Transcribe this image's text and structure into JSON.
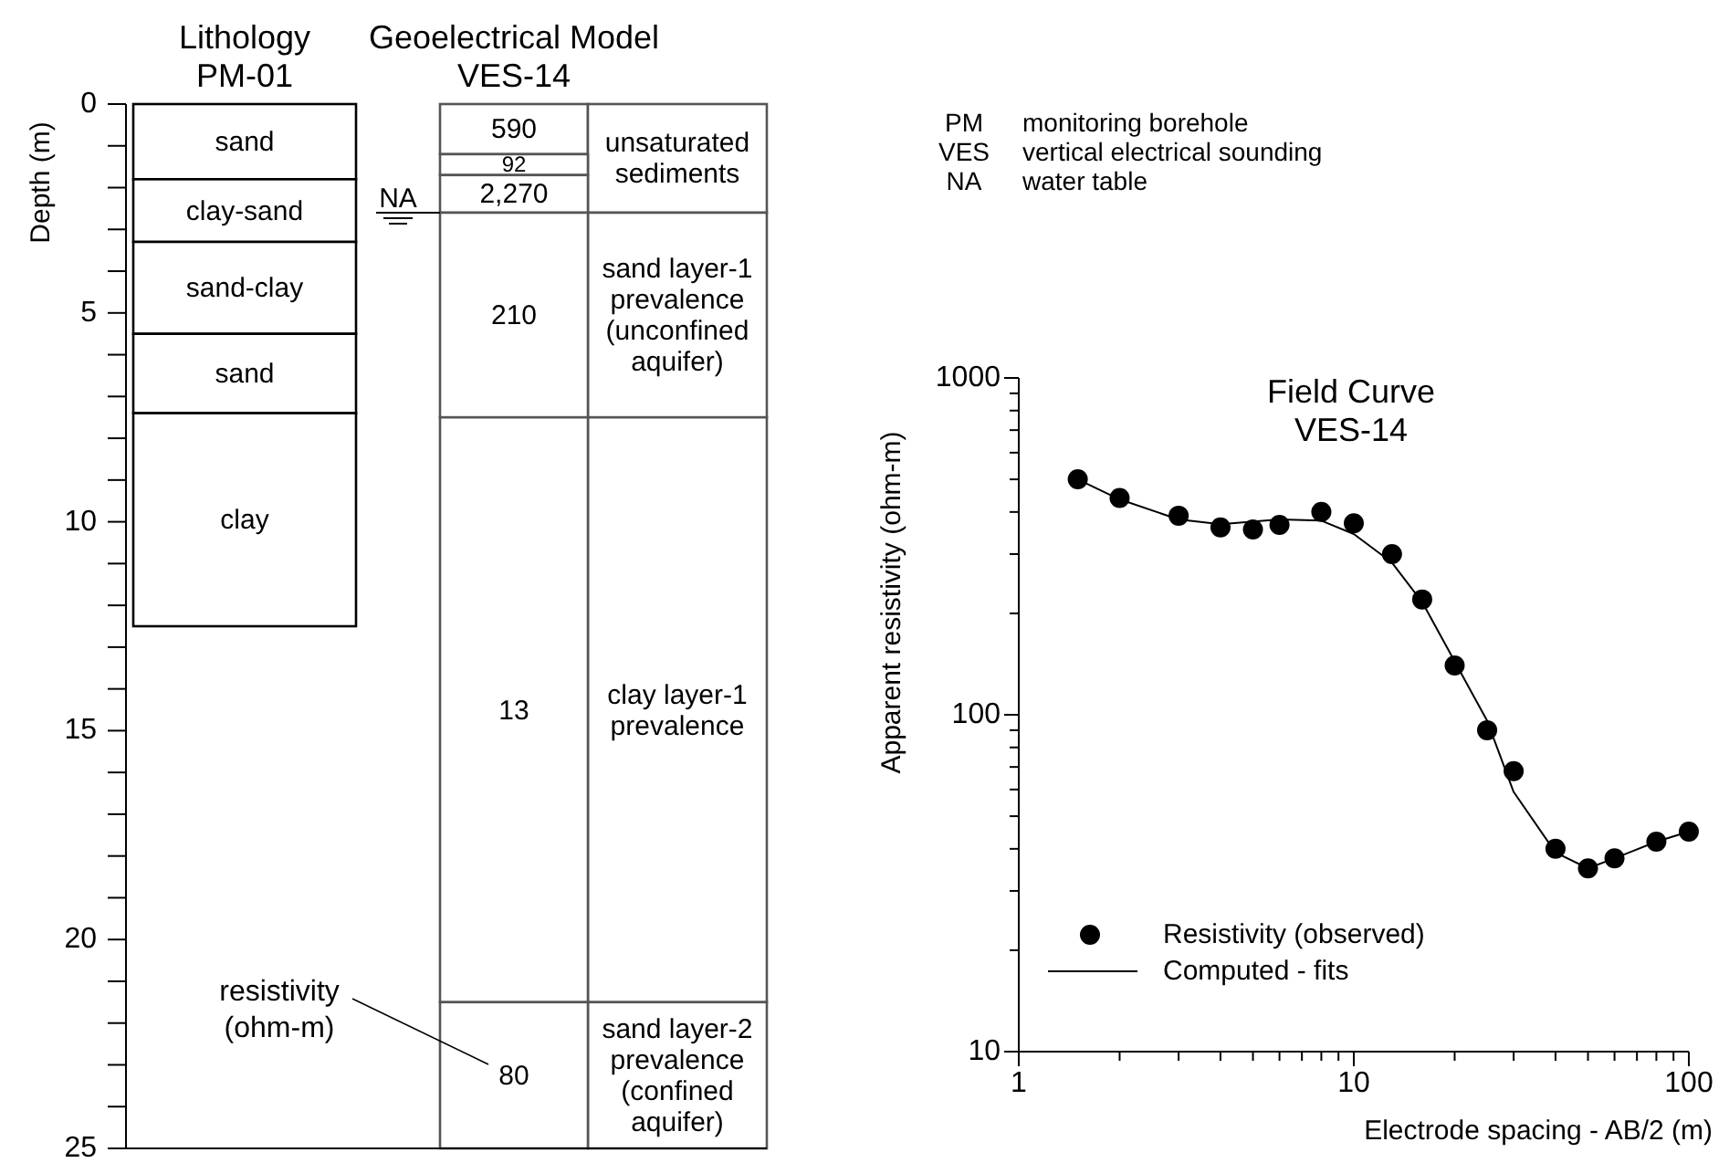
{
  "chart_data": [
    {
      "type": "bar",
      "stacked": true,
      "categories": [
        "Lithology\nPM-01",
        "Geoelectrical Model\nVES-14",
        null
      ],
      "ylabel": "Depth (m)",
      "ylim": [
        25,
        0
      ],
      "yticks": [
        0,
        {
          "value": 1,
          "label": null
        },
        {
          "value": 2,
          "label": null
        },
        {
          "value": 3,
          "label": null
        },
        {
          "value": 4,
          "label": null
        },
        5,
        {
          "value": 6,
          "label": null
        },
        {
          "value": 7,
          "label": null
        },
        {
          "value": 8,
          "label": null
        },
        {
          "value": 9,
          "label": null
        },
        10,
        {
          "value": 11,
          "label": null
        },
        {
          "value": 12,
          "label": null
        },
        {
          "value": 13,
          "label": null
        },
        {
          "value": 14,
          "label": null
        },
        15,
        {
          "value": 16,
          "label": null
        },
        {
          "value": 17,
          "label": null
        },
        {
          "value": 18,
          "label": null
        },
        {
          "value": 19,
          "label": null
        },
        20,
        {
          "value": 21,
          "label": null
        },
        {
          "value": 22,
          "label": null
        },
        {
          "value": 23,
          "label": null
        },
        {
          "value": 24,
          "label": null
        },
        25
      ],
      "series": [
        {
          "color": "#ffffff",
          "values": [
            1.8,
            1.2,
            2.6
          ],
          "value_labels": [
            "sand",
            null,
            "unsaturated\nsediments"
          ]
        },
        {
          "color": "#ffffff",
          "values": [
            1.5,
            0.5,
            4.9
          ],
          "value_labels": [
            "clay-sand",
            null,
            "sand layer-1\nprevalence\n(unconfined\naquifer)"
          ]
        },
        {
          "color": "#ffffff",
          "values": [
            2.2,
            0.9,
            14
          ],
          "value_labels": [
            "sand-clay",
            null,
            "clay layer-1\nprevalence"
          ]
        },
        {
          "color": "#ffffff",
          "values": [
            1.9,
            4.9,
            3.5
          ],
          "value_labels": [
            "sand",
            null,
            "sand layer-2\nprevalence\n(confined\naquifer)"
          ]
        },
        {
          "color": "#ffffff",
          "values": [
            5.1,
            14,
            null
          ],
          "value_labels": [
            "clay",
            null,
            null
          ]
        },
        {
          "color": "#ffffff",
          "values": [
            null,
            3.5,
            null
          ],
          "value_labels": [
            null,
            null,
            null
          ]
        }
      ],
      "ref_lines": [
        {
          "axis": "y",
          "value": 2.6,
          "label": "NA"
        }
      ],
      "annotations": [
        "590",
        "92",
        "2,270",
        "210",
        "13",
        "80",
        "resistivity\n(ohm-m)"
      ]
    },
    {
      "type": "scatter",
      "title": "Field Curve\nVES-14",
      "xlabel": "Electrode spacing - AB/2 (m)",
      "ylabel": "Apparent resistivity (ohm-m)",
      "log": "xy",
      "legend": "bottom left",
      "xlim": [
        1,
        100
      ],
      "ylim": [
        10,
        1000
      ],
      "xticks": [
        1,
        {
          "value": 2,
          "label": null
        },
        {
          "value": 3,
          "label": null
        },
        {
          "value": 4,
          "label": null
        },
        {
          "value": 5,
          "label": null
        },
        {
          "value": 6,
          "label": null
        },
        {
          "value": 7,
          "label": null
        },
        {
          "value": 8,
          "label": null
        },
        {
          "value": 9,
          "label": null
        },
        10,
        {
          "value": 20,
          "label": null
        },
        {
          "value": 30,
          "label": null
        },
        {
          "value": 40,
          "label": null
        },
        {
          "value": 50,
          "label": null
        },
        {
          "value": 60,
          "label": null
        },
        {
          "value": 70,
          "label": null
        },
        {
          "value": 80,
          "label": null
        },
        {
          "value": 90,
          "label": null
        },
        100
      ],
      "yticks": [
        10,
        {
          "value": 20,
          "label": null
        },
        {
          "value": 30,
          "label": null
        },
        {
          "value": 40,
          "label": null
        },
        {
          "value": 50,
          "label": null
        },
        {
          "value": 60,
          "label": null
        },
        {
          "value": 70,
          "label": null
        },
        {
          "value": 80,
          "label": null
        },
        {
          "value": 90,
          "label": null
        },
        100,
        {
          "value": 200,
          "label": null
        },
        {
          "value": 300,
          "label": null
        },
        {
          "value": 400,
          "label": null
        },
        {
          "value": 500,
          "label": null
        },
        {
          "value": 600,
          "label": null
        },
        {
          "value": 700,
          "label": null
        },
        {
          "value": 800,
          "label": null
        },
        {
          "value": 900,
          "label": null
        },
        1000
      ],
      "series": [
        {
          "name": "Resistivity (observed)",
          "type": "scatter",
          "marker": "circle",
          "color": "#000000",
          "x": [
            1.5,
            2,
            3,
            4,
            5,
            6,
            8,
            10,
            13,
            16,
            20,
            25,
            30,
            40,
            50,
            60,
            80,
            100
          ],
          "values": [
            500,
            440,
            390,
            360,
            355,
            366,
            400,
            370,
            300,
            220,
            140,
            90,
            68,
            40,
            35,
            37.5,
            42,
            45
          ]
        },
        {
          "name": "Computed - fits",
          "type": "line",
          "line_style": "solid",
          "color": "#000000",
          "x": [
            1.5,
            2,
            3,
            4,
            6,
            8,
            10,
            13,
            16,
            20,
            25,
            30,
            40,
            50,
            60,
            80,
            100
          ],
          "values": [
            500,
            436,
            380,
            368,
            380,
            377,
            344,
            283,
            216,
            144,
            96,
            59,
            39,
            35,
            37.5,
            42,
            45
          ]
        }
      ]
    },
    {
      "type": "other",
      "annotations": [
        "PM monitoring borehole",
        "VES vertical electrical sounding",
        "NA water table"
      ]
    }
  ]
}
